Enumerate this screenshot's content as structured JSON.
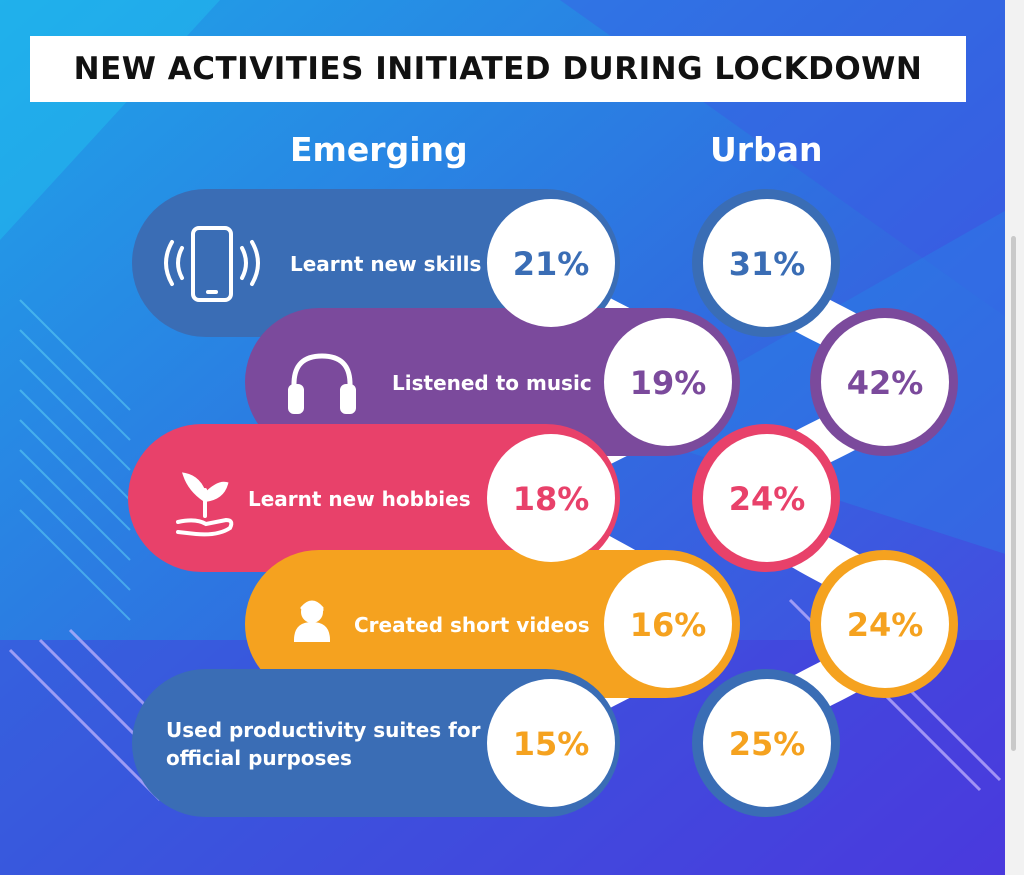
{
  "title": "NEW ACTIVITIES INITIATED DURING LOCKDOWN",
  "chart_data": {
    "type": "table",
    "columns": [
      "Emerging",
      "Urban"
    ],
    "rows": [
      {
        "label": "Learnt new skills",
        "icon": "smartphone-vibrating-icon",
        "color": "#3a6db5",
        "emerging": "21%",
        "urban": "31%"
      },
      {
        "label": "Listened to music",
        "icon": "headphones-icon",
        "color": "#7b4a9c",
        "emerging": "19%",
        "urban": "42%"
      },
      {
        "label": "Learnt new hobbies",
        "icon": "plant-in-hand-icon",
        "color": "#e8416a",
        "emerging": "18%",
        "urban": "24%"
      },
      {
        "label": "Created short videos",
        "icon": "vlogger-icon",
        "color": "#f5a21f",
        "emerging": "16%",
        "urban": "24%"
      },
      {
        "label": "Used productivity suites for official purposes",
        "label_lines": [
          "Used productivity suites for",
          "official purposes"
        ],
        "icon": "",
        "color": "#3a6db5",
        "value_color": "#f5a21f",
        "emerging": "15%",
        "urban": "25%"
      }
    ]
  }
}
